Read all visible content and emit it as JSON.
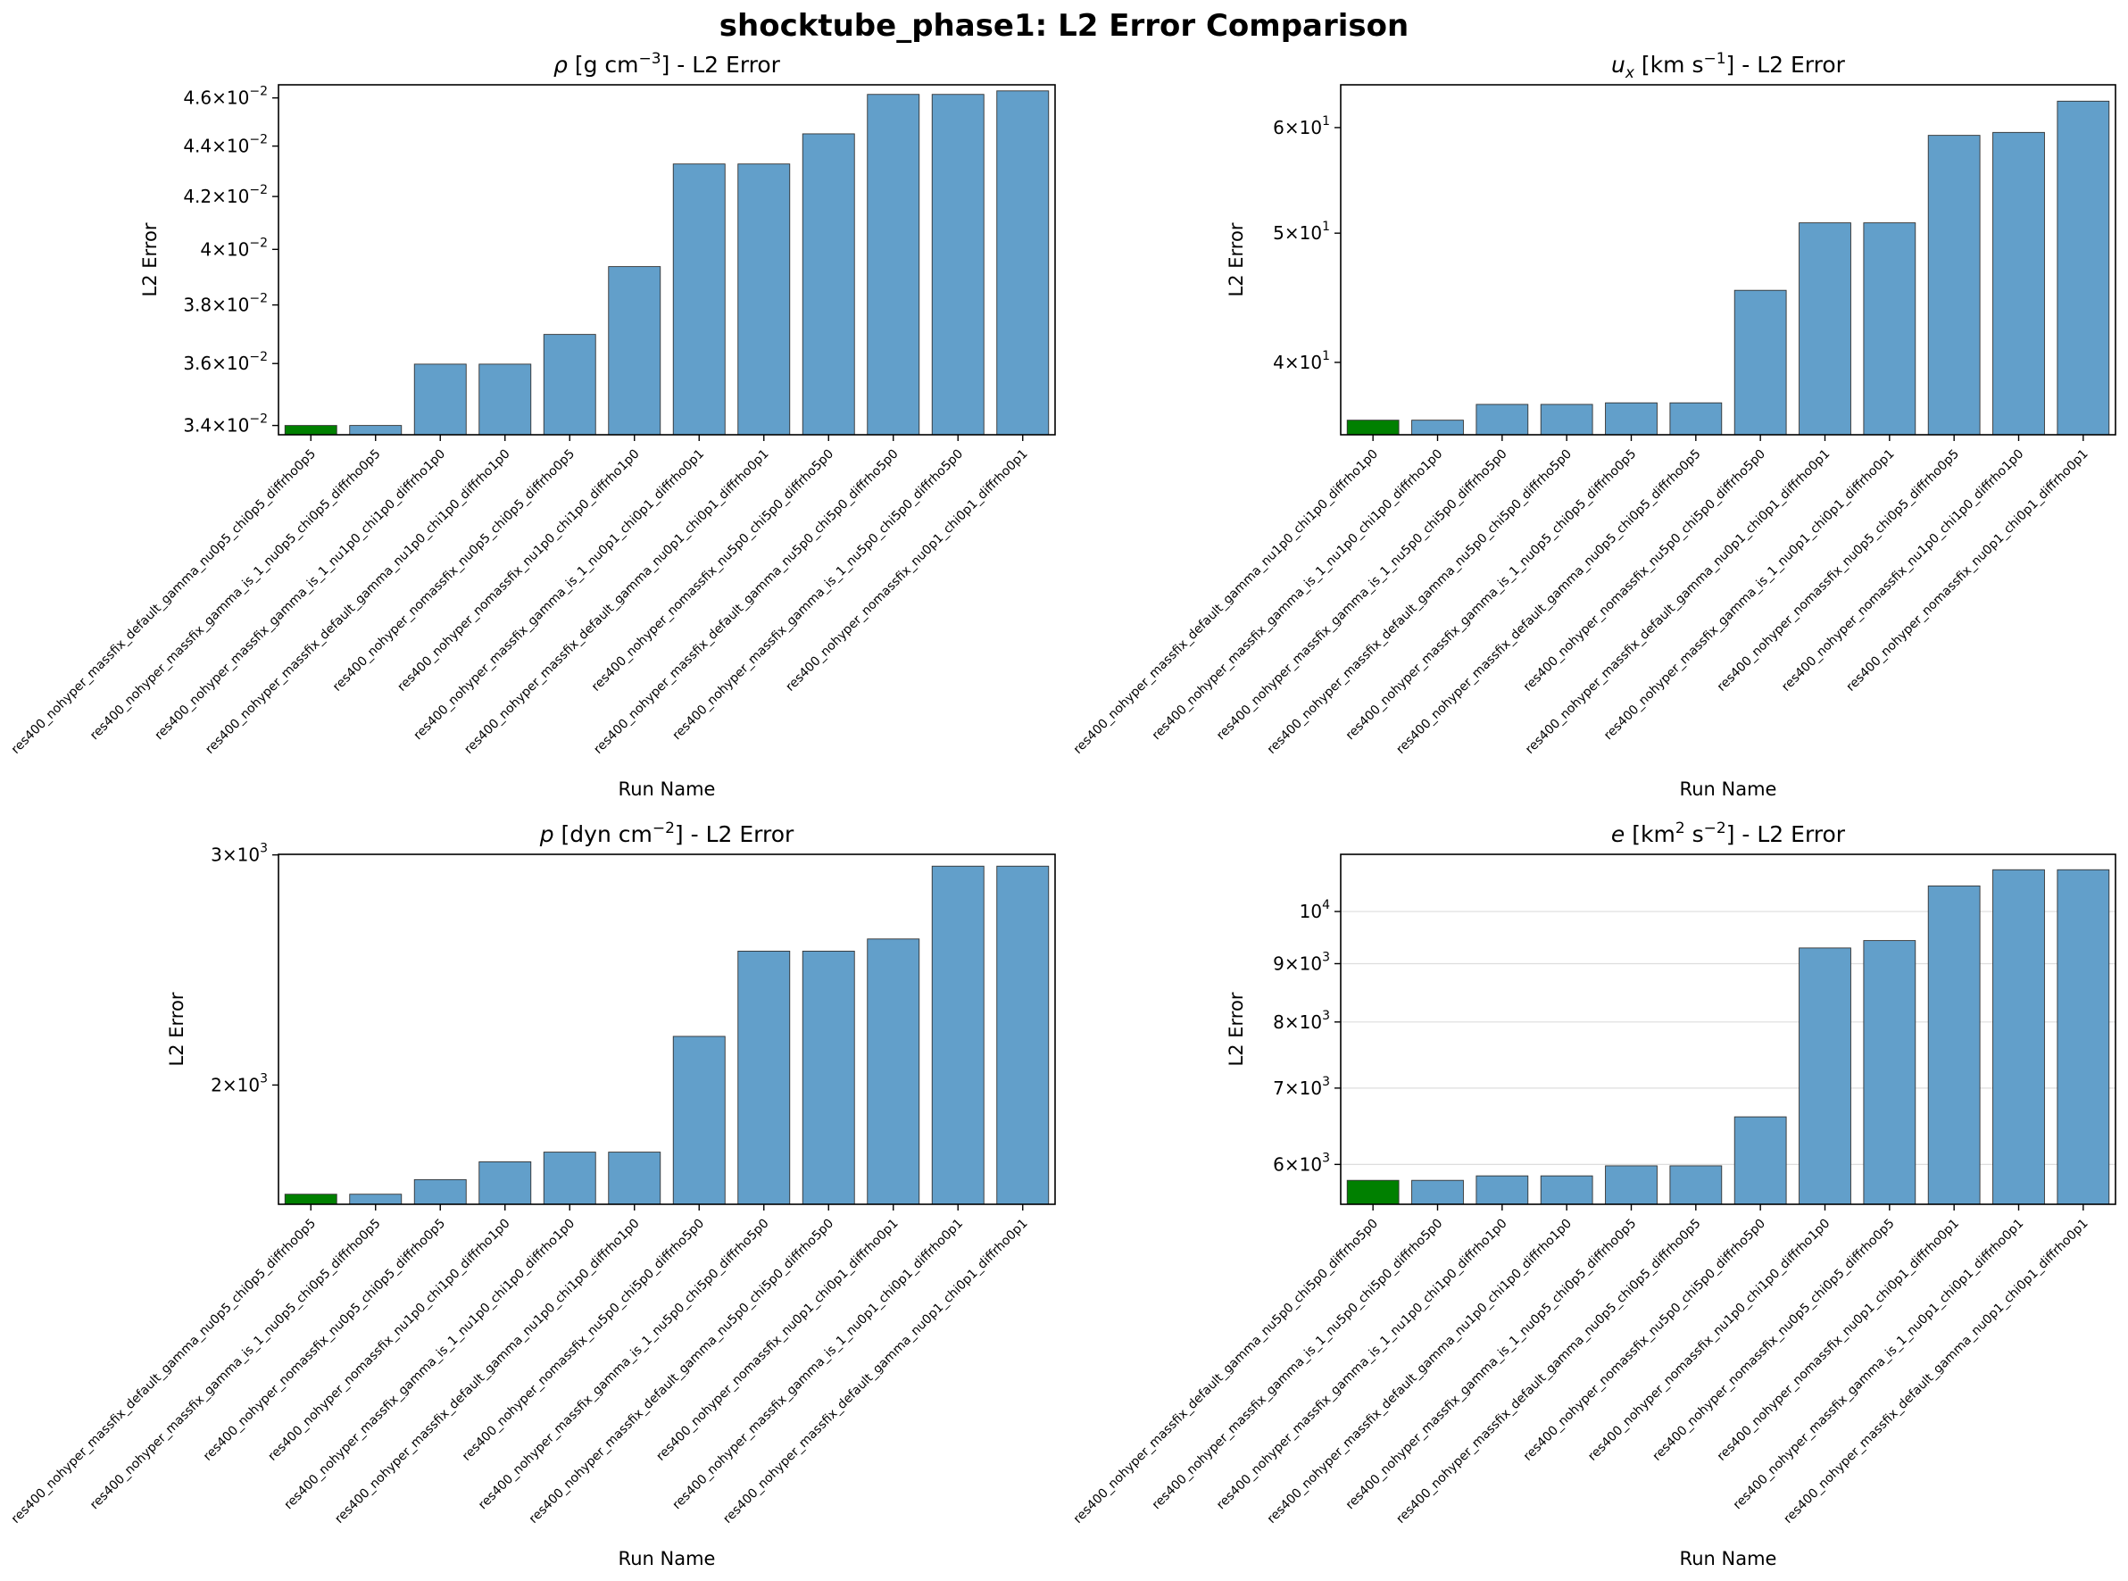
{
  "figure_title": "shocktube_phase1: L2 Error Comparison",
  "colors": {
    "bar": "#629fca",
    "best_bar": "#008000",
    "bar_edge": "#333333"
  },
  "chart_data": [
    {
      "type": "bar",
      "title": "ρ [g cm⁻³] - L2 Error",
      "title_parts": {
        "symbol": "ρ",
        "unit_base": "[g cm",
        "unit_exp": "−3",
        "unit_end": "]",
        "suffix": " - L2 Error"
      },
      "xlabel": "Run Name",
      "ylabel": "L2 Error",
      "yscale": "log",
      "ylim": [
        0.03371,
        0.04656
      ],
      "ytick_values": [
        0.034,
        0.036,
        0.038,
        0.04,
        0.042,
        0.044,
        0.046
      ],
      "ytick_labels": [
        {
          "m": "3.4",
          "e": "−2"
        },
        {
          "m": "3.6",
          "e": "−2"
        },
        {
          "m": "3.8",
          "e": "−2"
        },
        {
          "m": "4",
          "e": "−2"
        },
        {
          "m": "4.2",
          "e": "−2"
        },
        {
          "m": "4.4",
          "e": "−2"
        },
        {
          "m": "4.6",
          "e": "−2"
        }
      ],
      "grid": false,
      "highlight_index": 0,
      "categories": [
        "res400_nohyper_massfix_default_gamma_nu0p5_chi0p5_diffrho0p5",
        "res400_nohyper_massfix_gamma_is_1_nu0p5_chi0p5_diffrho0p5",
        "res400_nohyper_massfix_gamma_is_1_nu1p0_chi1p0_diffrho1p0",
        "res400_nohyper_massfix_default_gamma_nu1p0_chi1p0_diffrho1p0",
        "res400_nohyper_nomassfix_nu0p5_chi0p5_diffrho0p5",
        "res400_nohyper_nomassfix_nu1p0_chi1p0_diffrho1p0",
        "res400_nohyper_massfix_gamma_is_1_nu0p1_chi0p1_diffrho0p1",
        "res400_nohyper_massfix_default_gamma_nu0p1_chi0p1_diffrho0p1",
        "res400_nohyper_nomassfix_nu5p0_chi5p0_diffrho5p0",
        "res400_nohyper_massfix_default_gamma_nu5p0_chi5p0_diffrho5p0",
        "res400_nohyper_massfix_gamma_is_1_nu5p0_chi5p0_diffrho5p0",
        "res400_nohyper_nomassfix_nu0p1_chi0p1_diffrho0p1"
      ],
      "values": [
        0.034,
        0.034,
        0.03598,
        0.03598,
        0.03698,
        0.03937,
        0.04328,
        0.04328,
        0.0445,
        0.04615,
        0.04615,
        0.0463
      ]
    },
    {
      "type": "bar",
      "title": "uₓ [km s⁻¹] - L2 Error",
      "title_parts": {
        "symbol": "u",
        "sub": "x",
        "unit_base": "[km s",
        "unit_exp": "−1",
        "unit_end": "]",
        "suffix": " - L2 Error"
      },
      "xlabel": "Run Name",
      "ylabel": "L2 Error",
      "yscale": "log",
      "ylim": [
        35.3,
        64.6
      ],
      "ytick_values": [
        40,
        50,
        60
      ],
      "ytick_labels": [
        {
          "m": "4",
          "e": "1"
        },
        {
          "m": "5",
          "e": "1"
        },
        {
          "m": "6",
          "e": "1"
        }
      ],
      "grid": false,
      "highlight_index": 0,
      "categories": [
        "res400_nohyper_massfix_default_gamma_nu1p0_chi1p0_diffrho1p0",
        "res400_nohyper_massfix_gamma_is_1_nu1p0_chi1p0_diffrho1p0",
        "res400_nohyper_massfix_gamma_is_1_nu5p0_chi5p0_diffrho5p0",
        "res400_nohyper_massfix_default_gamma_nu5p0_chi5p0_diffrho5p0",
        "res400_nohyper_massfix_gamma_is_1_nu0p5_chi0p5_diffrho0p5",
        "res400_nohyper_massfix_default_gamma_nu0p5_chi0p5_diffrho0p5",
        "res400_nohyper_nomassfix_nu5p0_chi5p0_diffrho5p0",
        "res400_nohyper_massfix_default_gamma_nu0p1_chi0p1_diffrho0p1",
        "res400_nohyper_massfix_gamma_is_1_nu0p1_chi0p1_diffrho0p1",
        "res400_nohyper_nomassfix_nu0p5_chi0p5_diffrho0p5",
        "res400_nohyper_nomassfix_nu1p0_chi1p0_diffrho1p0",
        "res400_nohyper_nomassfix_nu0p1_chi0p1_diffrho0p1"
      ],
      "values": [
        36.2,
        36.2,
        37.2,
        37.2,
        37.3,
        37.3,
        45.3,
        50.9,
        50.9,
        59.2,
        59.5,
        62.8
      ]
    },
    {
      "type": "bar",
      "title": "p [dyn cm⁻²] - L2 Error",
      "title_parts": {
        "symbol": "p",
        "unit_base": "[dyn cm",
        "unit_exp": "−2",
        "unit_end": "]",
        "suffix": " - L2 Error"
      },
      "xlabel": "Run Name",
      "ylabel": "L2 Error",
      "yscale": "log",
      "ylim": [
        1621,
        3003
      ],
      "ytick_values": [
        2000,
        3000
      ],
      "ytick_labels": [
        {
          "m": "2",
          "e": "3"
        },
        {
          "m": "3",
          "e": "3"
        }
      ],
      "grid": false,
      "highlight_index": 0,
      "categories": [
        "res400_nohyper_massfix_default_gamma_nu0p5_chi0p5_diffrho0p5",
        "res400_nohyper_massfix_gamma_is_1_nu0p5_chi0p5_diffrho0p5",
        "res400_nohyper_nomassfix_nu0p5_chi0p5_diffrho0p5",
        "res400_nohyper_nomassfix_nu1p0_chi1p0_diffrho1p0",
        "res400_nohyper_massfix_gamma_is_1_nu1p0_chi1p0_diffrho1p0",
        "res400_nohyper_massfix_default_gamma_nu1p0_chi1p0_diffrho1p0",
        "res400_nohyper_nomassfix_nu5p0_chi5p0_diffrho5p0",
        "res400_nohyper_massfix_gamma_is_1_nu5p0_chi5p0_diffrho5p0",
        "res400_nohyper_massfix_default_gamma_nu5p0_chi5p0_diffrho5p0",
        "res400_nohyper_nomassfix_nu0p1_chi0p1_diffrho0p1",
        "res400_nohyper_massfix_gamma_is_1_nu0p1_chi0p1_diffrho0p1",
        "res400_nohyper_massfix_default_gamma_nu0p1_chi0p1_diffrho0p1"
      ],
      "values": [
        1650,
        1650,
        1693,
        1747,
        1777,
        1777,
        2179,
        2532,
        2532,
        2587,
        2941,
        2941
      ]
    },
    {
      "type": "bar",
      "title": "e [km² s⁻²] - L2 Error",
      "title_parts": {
        "symbol": "e",
        "unit_base": "[km",
        "unit_exp": "2",
        "unit_mid": " s",
        "unit_exp2": "−2",
        "unit_end": "]",
        "suffix": " - L2 Error"
      },
      "xlabel": "Run Name",
      "ylabel": "L2 Error",
      "yscale": "log",
      "ylim": [
        5536,
        11224
      ],
      "ytick_values": [
        6000,
        7000,
        8000,
        9000,
        10000
      ],
      "ytick_labels": [
        {
          "m": "6",
          "e": "3"
        },
        {
          "m": "7",
          "e": "3"
        },
        {
          "m": "8",
          "e": "3"
        },
        {
          "m": "9",
          "e": "3"
        },
        {
          "m": "",
          "e": "4"
        }
      ],
      "grid": true,
      "highlight_index": 0,
      "categories": [
        "res400_nohyper_massfix_default_gamma_nu5p0_chi5p0_diffrho5p0",
        "res400_nohyper_massfix_gamma_is_1_nu5p0_chi5p0_diffrho5p0",
        "res400_nohyper_massfix_gamma_is_1_nu1p0_chi1p0_diffrho1p0",
        "res400_nohyper_massfix_default_gamma_nu1p0_chi1p0_diffrho1p0",
        "res400_nohyper_massfix_gamma_is_1_nu0p5_chi0p5_diffrho0p5",
        "res400_nohyper_massfix_default_gamma_nu0p5_chi0p5_diffrho0p5",
        "res400_nohyper_nomassfix_nu5p0_chi5p0_diffrho5p0",
        "res400_nohyper_nomassfix_nu1p0_chi1p0_diffrho1p0",
        "res400_nohyper_nomassfix_nu0p5_chi0p5_diffrho0p5",
        "res400_nohyper_nomassfix_nu0p1_chi0p1_diffrho0p1",
        "res400_nohyper_massfix_gamma_is_1_nu0p1_chi0p1_diffrho0p1",
        "res400_nohyper_massfix_default_gamma_nu0p1_chi0p1_diffrho0p1"
      ],
      "values": [
        5810,
        5810,
        5863,
        5863,
        5983,
        5983,
        6605,
        9290,
        9430,
        10530,
        10880,
        10880
      ]
    }
  ]
}
